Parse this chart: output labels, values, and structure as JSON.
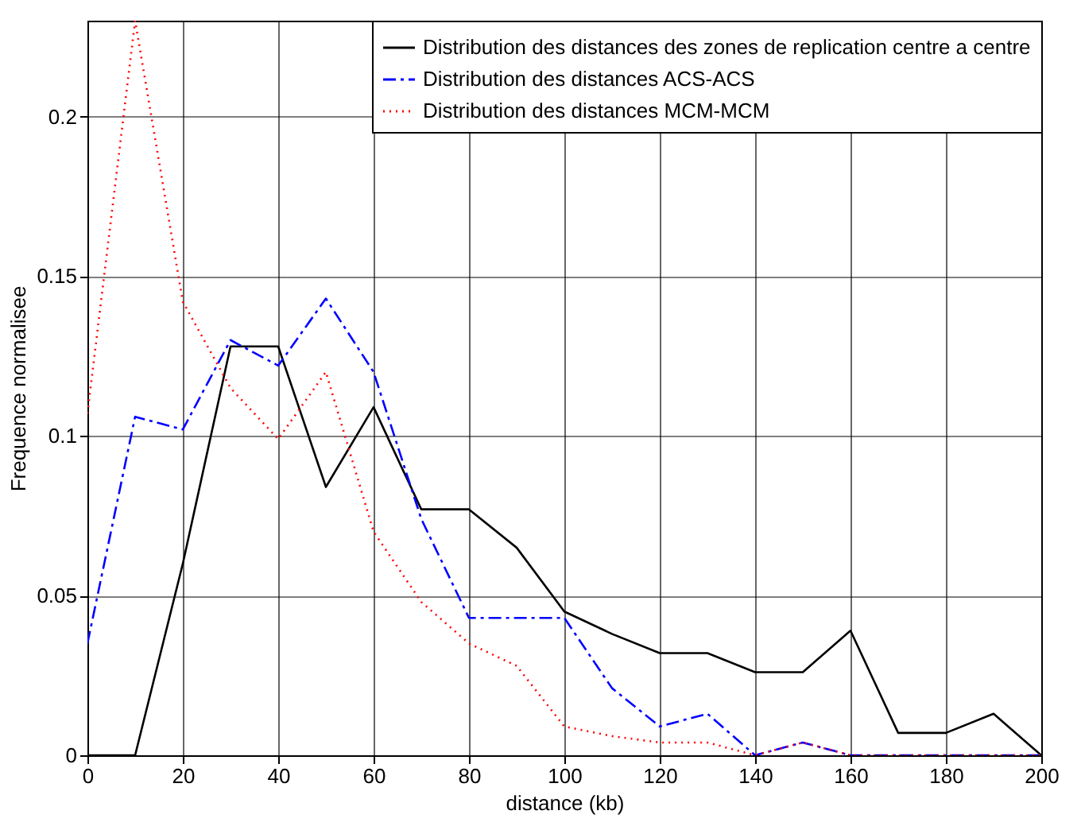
{
  "chart_data": {
    "type": "line",
    "xlabel": "distance (kb)",
    "ylabel": "Frequence normalisee",
    "x": [
      0,
      10,
      20,
      30,
      40,
      50,
      60,
      70,
      80,
      90,
      100,
      110,
      120,
      130,
      140,
      150,
      160,
      170,
      180,
      190,
      200
    ],
    "series": [
      {
        "name": "Distribution des distances des zones de replication centre a centre",
        "color": "#000000",
        "line_style": "solid",
        "values": [
          0,
          0,
          0.06,
          0.128,
          0.128,
          0.084,
          0.109,
          0.077,
          0.077,
          0.065,
          0.045,
          0.038,
          0.032,
          0.032,
          0.026,
          0.026,
          0.039,
          0.007,
          0.007,
          0.013,
          0
        ]
      },
      {
        "name": "Distribution des distances ACS-ACS",
        "color": "#0000ff",
        "line_style": "dashdot",
        "values": [
          0.035,
          0.106,
          0.102,
          0.13,
          0.122,
          0.143,
          0.12,
          0.074,
          0.043,
          0.043,
          0.043,
          0.021,
          0.009,
          0.013,
          0,
          0.004,
          0,
          0,
          0,
          0,
          0
        ]
      },
      {
        "name": "Distribution des distances MCM-MCM",
        "color": "#ff0000",
        "line_style": "dotted",
        "values": [
          0.107,
          0.23,
          0.142,
          0.115,
          0.099,
          0.12,
          0.07,
          0.048,
          0.035,
          0.028,
          0.009,
          0.006,
          0.004,
          0.004,
          0,
          0.004,
          0,
          0,
          0,
          0,
          0
        ]
      }
    ],
    "xlim": [
      0,
      200
    ],
    "xticks": [
      0,
      20,
      40,
      60,
      80,
      100,
      120,
      140,
      160,
      180,
      200
    ],
    "ylim": [
      0,
      0.23
    ],
    "yticks": [
      0,
      0.05,
      0.1,
      0.15,
      0.2
    ],
    "grid": true,
    "legend": "top right",
    "marker": "none"
  }
}
